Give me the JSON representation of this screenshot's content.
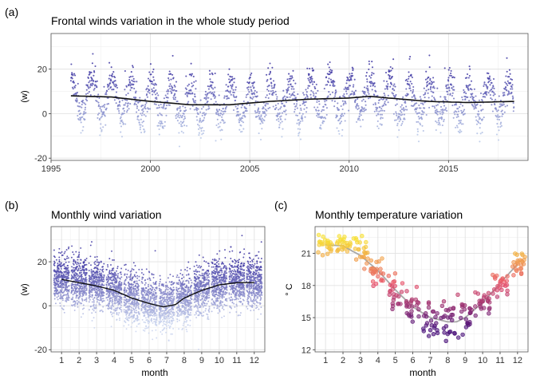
{
  "panel_tags": [
    "(a)",
    "(b)",
    "(c)"
  ],
  "chart_data": [
    {
      "type": "scatter",
      "title": "Frontal winds variation in the whole study period",
      "xlabel": "",
      "ylabel": "(w)",
      "xlim": [
        1995,
        2019
      ],
      "ylim": [
        -21,
        36
      ],
      "x_ticks": [
        1995,
        2000,
        2005,
        2010,
        2015
      ],
      "y_ticks": [
        -20,
        0,
        20
      ],
      "grid": true,
      "points_description_values": {
        "x_range": [
          1996.0,
          2018.3
        ],
        "annual_cycle": "seasonal oscillation, high ~ +12 to +20 near year start, low ~ -5 to -12 near mid-year",
        "extremes": {
          "max": 34,
          "min": -19
        }
      },
      "trend": {
        "x": [
          1996.0,
          1998.0,
          2000.0,
          2002.0,
          2004.0,
          2006.0,
          2008.0,
          2010.0,
          2011.0,
          2012.0,
          2014.0,
          2016.0,
          2018.3
        ],
        "y": [
          8,
          7.5,
          5.5,
          4,
          4,
          5.5,
          6.5,
          7,
          7.8,
          7,
          5.5,
          5,
          5.5
        ]
      },
      "colors": {
        "high": "#3f37a3",
        "low": "#b8c8e8",
        "trend": "#111111"
      }
    },
    {
      "type": "scatter",
      "title": "Monthly wind variation",
      "xlabel": "month",
      "ylabel": "(w)",
      "xlim": [
        0.4,
        12.6
      ],
      "ylim": [
        -21,
        36
      ],
      "x_ticks": [
        1,
        2,
        3,
        4,
        5,
        6,
        7,
        8,
        9,
        10,
        11,
        12
      ],
      "y_ticks": [
        -20,
        0,
        20
      ],
      "grid": true,
      "trend": {
        "x": [
          1,
          2,
          3,
          4,
          5,
          6,
          6.8,
          7.5,
          8,
          9,
          10,
          11,
          12
        ],
        "y": [
          12,
          10.5,
          9,
          7,
          3.5,
          1,
          -0.5,
          0.5,
          3.5,
          7,
          9.5,
          10.5,
          10.5
        ]
      },
      "colors": {
        "high": "#3f37a3",
        "low": "#c9d4ee",
        "trend": "#111111"
      }
    },
    {
      "type": "scatter",
      "title": "Monthly temperature variation",
      "xlabel": "month",
      "ylabel": "° C",
      "xlim": [
        0.4,
        12.6
      ],
      "ylim": [
        11.8,
        23.5
      ],
      "x_ticks": [
        1,
        2,
        3,
        4,
        5,
        6,
        7,
        8,
        9,
        10,
        11,
        12
      ],
      "y_ticks": [
        12,
        15,
        18,
        21
      ],
      "grid": true,
      "points": {
        "month": [
          1,
          2,
          3,
          4,
          5,
          6,
          7,
          8,
          9,
          10,
          11,
          12
        ],
        "mean": [
          21.8,
          21.8,
          21.4,
          19.3,
          17.4,
          16.0,
          14.8,
          14.6,
          15.2,
          16.5,
          18.1,
          20.1
        ],
        "spread": [
          0.5,
          0.5,
          0.6,
          0.7,
          0.8,
          0.8,
          0.9,
          0.9,
          0.8,
          0.6,
          0.6,
          0.5
        ]
      },
      "trend": {
        "x": [
          1,
          2,
          3,
          4,
          5,
          6,
          7,
          8,
          8.5,
          9,
          10,
          11,
          12
        ],
        "y": [
          21.8,
          21.7,
          20.8,
          19.4,
          17.6,
          16.0,
          15.0,
          14.6,
          14.6,
          15.0,
          16.4,
          18.2,
          20.0
        ]
      },
      "colors": {
        "hot": "#f7e034",
        "mid": "#e8506a",
        "cold": "#4a117a",
        "trend": "#a8a8a8"
      }
    }
  ]
}
